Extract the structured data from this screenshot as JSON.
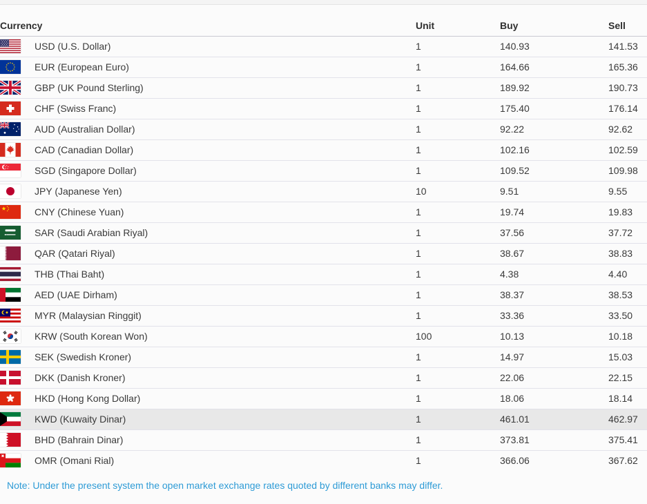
{
  "table": {
    "columns": {
      "currency": "Currency",
      "unit": "Unit",
      "buy": "Buy",
      "sell": "Sell"
    },
    "rows": [
      {
        "code": "USD",
        "label": "USD (U.S. Dollar)",
        "unit": "1",
        "buy": "140.93",
        "sell": "141.53",
        "highlighted": false
      },
      {
        "code": "EUR",
        "label": "EUR (European Euro)",
        "unit": "1",
        "buy": "164.66",
        "sell": "165.36",
        "highlighted": false
      },
      {
        "code": "GBP",
        "label": "GBP (UK Pound Sterling)",
        "unit": "1",
        "buy": "189.92",
        "sell": "190.73",
        "highlighted": false
      },
      {
        "code": "CHF",
        "label": "CHF (Swiss Franc)",
        "unit": "1",
        "buy": "175.40",
        "sell": "176.14",
        "highlighted": false
      },
      {
        "code": "AUD",
        "label": "AUD (Australian Dollar)",
        "unit": "1",
        "buy": "92.22",
        "sell": "92.62",
        "highlighted": false
      },
      {
        "code": "CAD",
        "label": "CAD (Canadian Dollar)",
        "unit": "1",
        "buy": "102.16",
        "sell": "102.59",
        "highlighted": false
      },
      {
        "code": "SGD",
        "label": "SGD (Singapore Dollar)",
        "unit": "1",
        "buy": "109.52",
        "sell": "109.98",
        "highlighted": false
      },
      {
        "code": "JPY",
        "label": "JPY (Japanese Yen)",
        "unit": "10",
        "buy": "9.51",
        "sell": "9.55",
        "highlighted": false
      },
      {
        "code": "CNY",
        "label": "CNY (Chinese Yuan)",
        "unit": "1",
        "buy": "19.74",
        "sell": "19.83",
        "highlighted": false
      },
      {
        "code": "SAR",
        "label": "SAR (Saudi Arabian Riyal)",
        "unit": "1",
        "buy": "37.56",
        "sell": "37.72",
        "highlighted": false
      },
      {
        "code": "QAR",
        "label": "QAR (Qatari Riyal)",
        "unit": "1",
        "buy": "38.67",
        "sell": "38.83",
        "highlighted": false
      },
      {
        "code": "THB",
        "label": "THB (Thai Baht)",
        "unit": "1",
        "buy": "4.38",
        "sell": "4.40",
        "highlighted": false
      },
      {
        "code": "AED",
        "label": "AED (UAE Dirham)",
        "unit": "1",
        "buy": "38.37",
        "sell": "38.53",
        "highlighted": false
      },
      {
        "code": "MYR",
        "label": "MYR (Malaysian Ringgit)",
        "unit": "1",
        "buy": "33.36",
        "sell": "33.50",
        "highlighted": false
      },
      {
        "code": "KRW",
        "label": "KRW (South Korean Won)",
        "unit": "100",
        "buy": "10.13",
        "sell": "10.18",
        "highlighted": false
      },
      {
        "code": "SEK",
        "label": "SEK (Swedish Kroner)",
        "unit": "1",
        "buy": "14.97",
        "sell": "15.03",
        "highlighted": false
      },
      {
        "code": "DKK",
        "label": "DKK (Danish Kroner)",
        "unit": "1",
        "buy": "22.06",
        "sell": "22.15",
        "highlighted": false
      },
      {
        "code": "HKD",
        "label": "HKD (Hong Kong Dollar)",
        "unit": "1",
        "buy": "18.06",
        "sell": "18.14",
        "highlighted": false
      },
      {
        "code": "KWD",
        "label": "KWD (Kuwaity Dinar)",
        "unit": "1",
        "buy": "461.01",
        "sell": "462.97",
        "highlighted": true
      },
      {
        "code": "BHD",
        "label": "BHD (Bahrain Dinar)",
        "unit": "1",
        "buy": "373.81",
        "sell": "375.41",
        "highlighted": false
      },
      {
        "code": "OMR",
        "label": "OMR (Omani Rial)",
        "unit": "1",
        "buy": "366.06",
        "sell": "367.62",
        "highlighted": false
      }
    ]
  },
  "note": "Note: Under the present system the open market exchange rates quoted by different banks may differ.",
  "colors": {
    "note_text": "#2e9bd6",
    "highlight_row": "#e8e8e8",
    "row_separator": "#e2e2ea",
    "header_text": "#2f2f2f",
    "body_text": "#3a3a3a"
  }
}
